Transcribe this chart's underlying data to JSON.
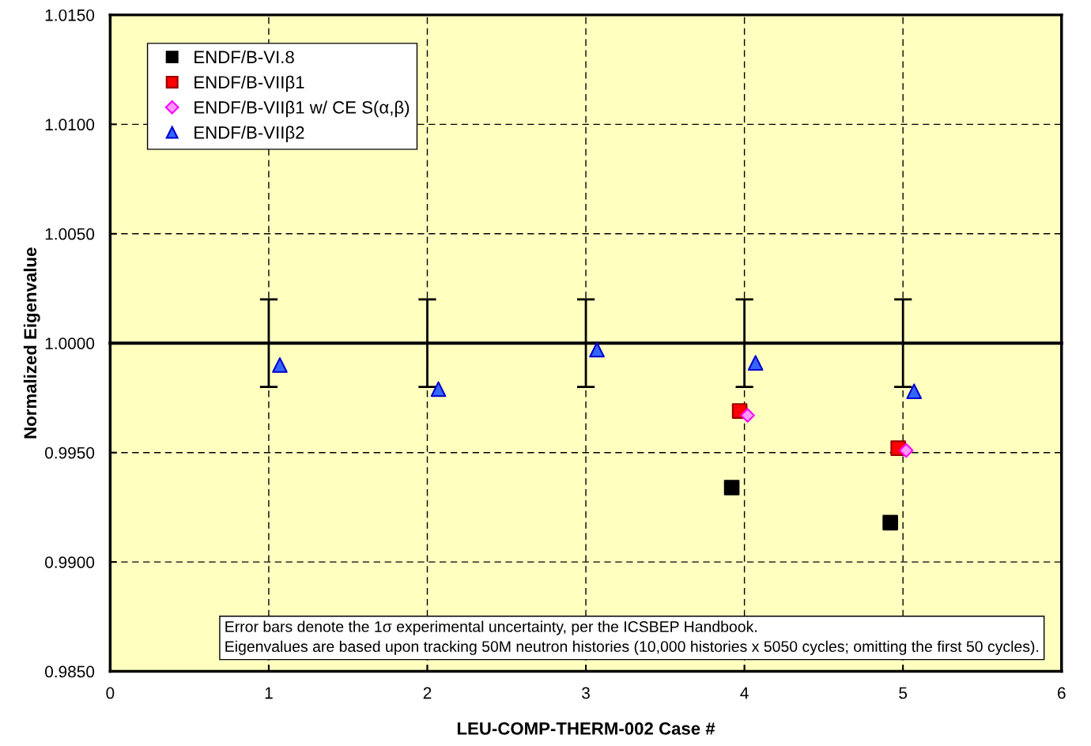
{
  "chart_data": {
    "type": "scatter",
    "xlabel": "LEU-COMP-THERM-002 Case #",
    "ylabel": "Normalized Eigenvalue",
    "xlim": [
      0,
      6
    ],
    "xticks": [
      0,
      1,
      2,
      3,
      4,
      5,
      6
    ],
    "ylim": [
      0.985,
      1.015
    ],
    "yticks": [
      {
        "value": 0.985,
        "label": "0.9850"
      },
      {
        "value": 0.99,
        "label": "0.9900"
      },
      {
        "value": 0.995,
        "label": "0.9950"
      },
      {
        "value": 1.0,
        "label": "1.0000"
      },
      {
        "value": 1.005,
        "label": "1.0050"
      },
      {
        "value": 1.01,
        "label": "1.0100"
      },
      {
        "value": 1.015,
        "label": "1.0150"
      }
    ],
    "grid": true,
    "legend": "top left",
    "series": [
      {
        "name": "ENDF/B-VI.8",
        "color": "#000000",
        "marker": "square",
        "x": [
          3.92,
          4.92
        ],
        "values": [
          0.9934,
          0.9918
        ]
      },
      {
        "name": "ENDF/B-VIIβ1",
        "color": "#ff0000",
        "marker": "square",
        "x": [
          3.97,
          4.97
        ],
        "values": [
          0.9969,
          0.9952
        ]
      },
      {
        "name": "ENDF/B-VIIβ1 w/ CE S(α,β)",
        "color": "#ff99ff",
        "marker": "diamond",
        "x": [
          4.02,
          5.02
        ],
        "values": [
          0.9967,
          0.9951
        ]
      },
      {
        "name": "ENDF/B-VIIβ2",
        "color": "#3366ff",
        "marker": "triangle",
        "x": [
          1.07,
          2.07,
          3.07,
          4.07,
          5.07
        ],
        "values": [
          0.999,
          0.9979,
          0.9997,
          0.9991,
          0.9978
        ]
      },
      {
        "type": "line",
        "color": "#000000",
        "marker": "none",
        "line_style": "solid",
        "x": [
          0,
          1,
          2,
          3,
          4,
          5,
          6
        ],
        "values": [
          1.0,
          1.0,
          1.0,
          1.0,
          1.0,
          1.0,
          1.0
        ],
        "errors": [
          null,
          0.002,
          0.002,
          0.002,
          0.002,
          0.002,
          null
        ]
      }
    ],
    "annotations": [
      "Error bars denote the 1σ experimental uncertainty, per the ICSBEP Handbook.",
      "Eigenvalues are based upon tracking 50M neutron histories (10,000 histories x 5050 cycles; omitting the first 50 cycles)."
    ]
  }
}
